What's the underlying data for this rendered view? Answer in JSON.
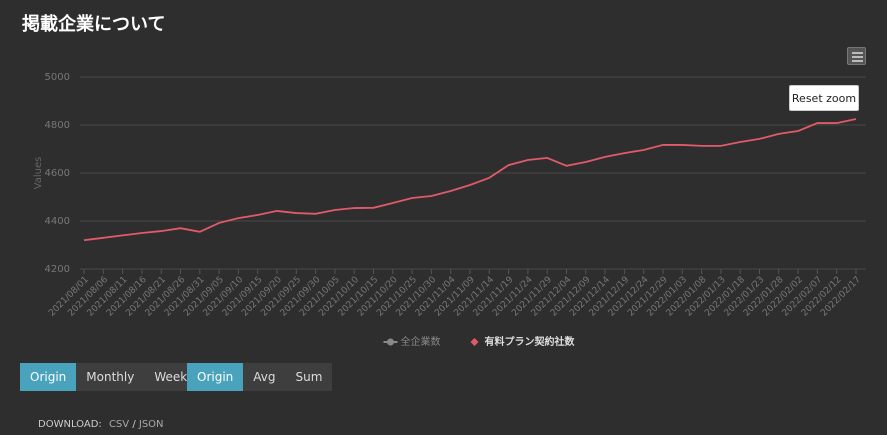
{
  "header": {
    "title": "掲載企業について"
  },
  "chart_data": {
    "type": "line",
    "y_label": "Values",
    "categories": [
      "2021/08/01",
      "2021/08/06",
      "2021/08/11",
      "2021/08/16",
      "2021/08/21",
      "2021/08/26",
      "2021/08/31",
      "2021/09/05",
      "2021/09/10",
      "2021/09/15",
      "2021/09/20",
      "2021/09/25",
      "2021/09/30",
      "2021/10/05",
      "2021/10/10",
      "2021/10/15",
      "2021/10/20",
      "2021/10/25",
      "2021/10/30",
      "2021/11/04",
      "2021/11/09",
      "2021/11/14",
      "2021/11/19",
      "2021/11/24",
      "2021/11/29",
      "2021/12/04",
      "2021/12/09",
      "2021/12/14",
      "2021/12/19",
      "2021/12/24",
      "2021/12/29",
      "2022/01/03",
      "2022/01/08",
      "2022/01/13",
      "2022/01/18",
      "2022/01/23",
      "2022/01/28",
      "2022/02/02",
      "2022/02/07",
      "2022/02/12",
      "2022/02/17"
    ],
    "series": [
      {
        "name": "全企業数",
        "color": "#8a8a8a",
        "visible": false
      },
      {
        "name": "有料プラン契約社数",
        "color": "#e05a6a",
        "visible": true,
        "values": [
          4320,
          4330,
          4340,
          4350,
          4358,
          4370,
          4355,
          4392,
          4412,
          4425,
          4442,
          4433,
          4430,
          4446,
          4454,
          4455,
          4475,
          4496,
          4504,
          4525,
          4550,
          4580,
          4633,
          4654,
          4663,
          4630,
          4646,
          4667,
          4683,
          4696,
          4717,
          4717,
          4713,
          4713,
          4729,
          4742,
          4763,
          4775,
          4808,
          4808,
          4825
        ]
      }
    ],
    "ylim": [
      4200,
      5000
    ],
    "yticks": [
      4200,
      4400,
      4600,
      4800,
      5000
    ],
    "grid": true
  },
  "controls": {
    "reset_zoom": "Reset zoom",
    "period_buttons": [
      "Origin",
      "Monthly",
      "Weekly"
    ],
    "active_period": 0,
    "aggregate_buttons": [
      "Origin",
      "Avg",
      "Sum"
    ],
    "active_aggregate": 0
  },
  "download": {
    "label": "DOWNLOAD:",
    "csv": "CSV",
    "separator": "/",
    "json": "JSON"
  }
}
